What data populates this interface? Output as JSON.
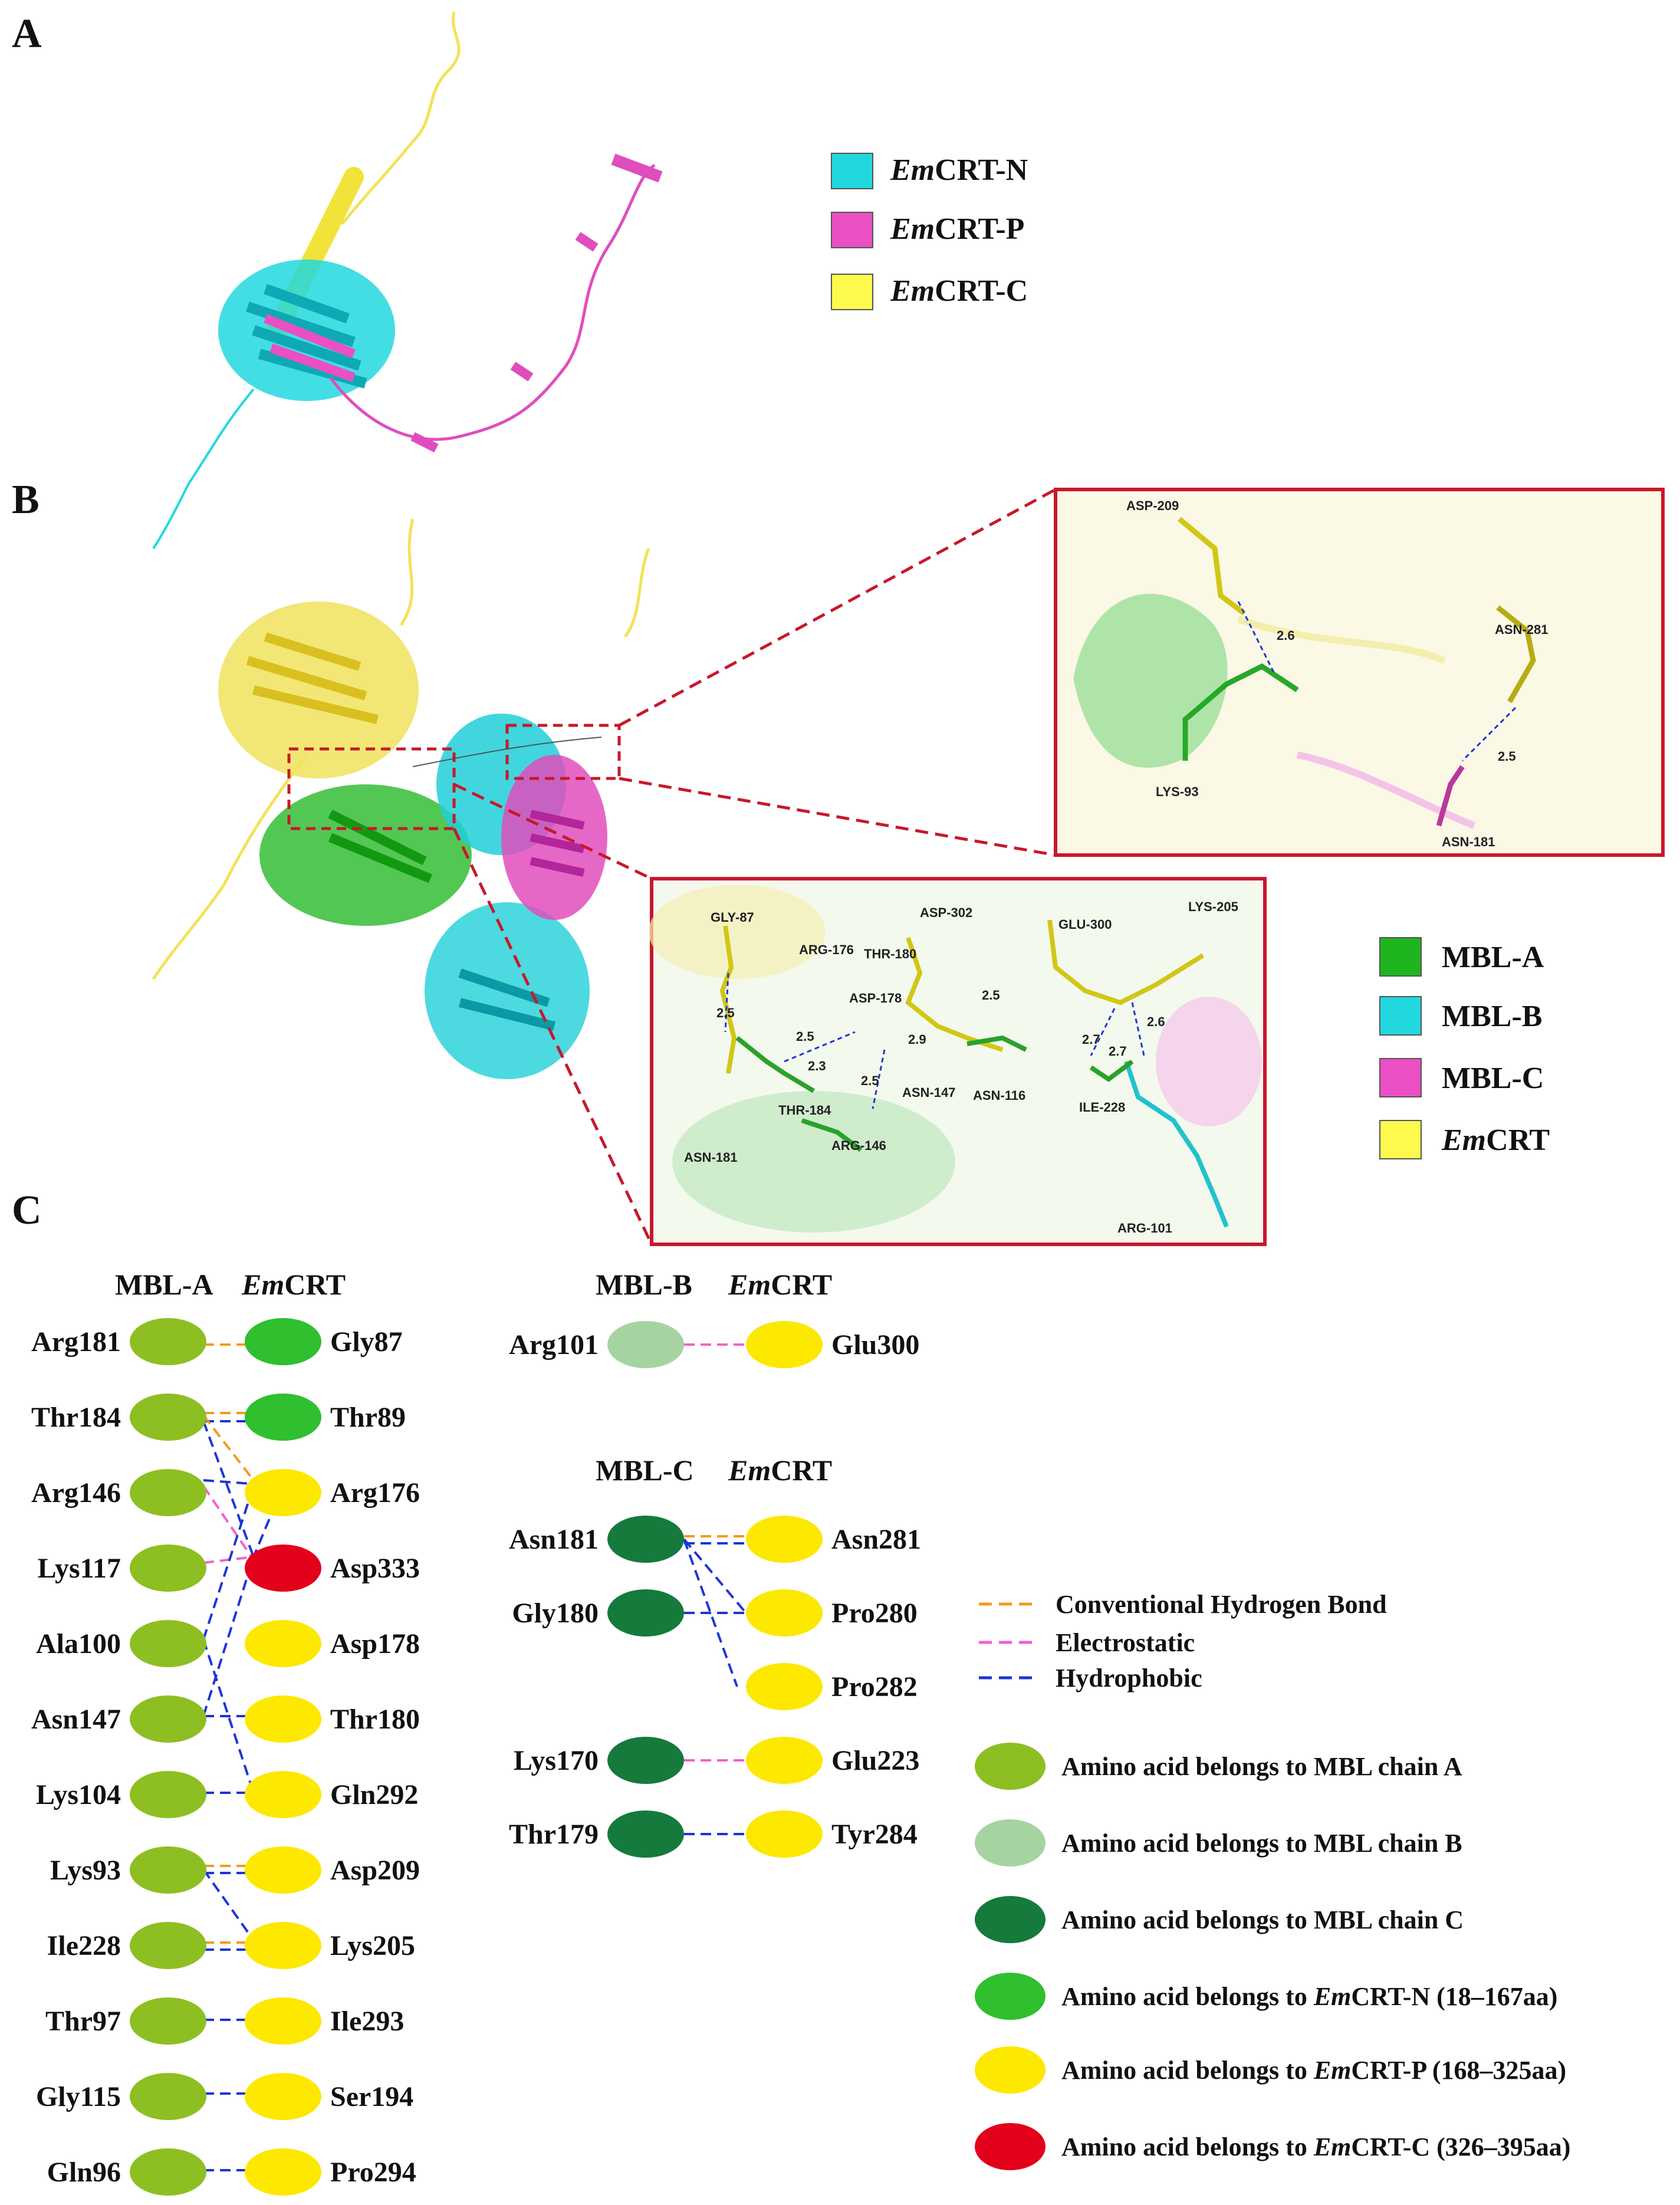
{
  "panels": {
    "a": "A",
    "b": "B",
    "c": "C"
  },
  "legend_a": [
    {
      "em": "Em",
      "rest": "CRT-N",
      "color": "#22d8df"
    },
    {
      "em": "Em",
      "rest": "CRT-P",
      "color": "#ea4fc3"
    },
    {
      "em": "Em",
      "rest": "CRT-C",
      "color": "#fdfa4d"
    }
  ],
  "legend_b": [
    {
      "label": "MBL-A",
      "em": "",
      "color": "#1fb51f"
    },
    {
      "label": "MBL-B",
      "em": "",
      "color": "#22d8df"
    },
    {
      "label": "MBL-C",
      "em": "",
      "color": "#ea4fc3"
    },
    {
      "label": "CRT",
      "em": "Em",
      "color": "#fdfa4d"
    }
  ],
  "inset_top_labels": [
    "ASP-209",
    "2.6",
    "ASN-281",
    "2.5",
    "LYS-93",
    "ASN-181"
  ],
  "inset_bottom_labels": [
    "GLY-87",
    "ASP-302",
    "GLU-300",
    "LYS-205",
    "ARG-176",
    "THR-180",
    "ASP-178",
    "2.5",
    "2.5",
    "2.9",
    "2.5",
    "2.3",
    "2.7",
    "2.6",
    "2.7",
    "2.5",
    "ASN-147",
    "ASN-116",
    "ILE-228",
    "THR-184",
    "ARG-146",
    "ASN-181",
    "ARG-101"
  ],
  "group_a": {
    "hdr_left": "MBL-A",
    "hdr_em": "Em",
    "hdr_right": "CRT",
    "left": [
      "Arg181",
      "Thr184",
      "Arg146",
      "Lys117",
      "Ala100",
      "Asn147",
      "Lys104",
      "Lys93",
      "Ile228",
      "Thr97",
      "Gly115",
      "Gln96"
    ],
    "right": [
      "Gly87",
      "Thr89",
      "Arg176",
      "Asp333",
      "Asp178",
      "Thr180",
      "Gln292",
      "Asp209",
      "Lys205",
      "Ile293",
      "Ser194",
      "Pro294"
    ]
  },
  "group_b": {
    "hdr_left": "MBL-B",
    "hdr_em": "Em",
    "hdr_right": "CRT",
    "left": [
      "Arg101"
    ],
    "right": [
      "Glu300"
    ]
  },
  "group_c": {
    "hdr_left": "MBL-C",
    "hdr_em": "Em",
    "hdr_right": "CRT",
    "left": [
      "Asn181",
      "Gly180",
      "Lys170",
      "Thr179"
    ],
    "right": [
      "Asn281",
      "Pro280",
      "Pro282",
      "Glu223",
      "Tyr284"
    ]
  },
  "bond_legend": [
    {
      "label": "Conventional Hydrogen Bond",
      "color": "#f39a1e"
    },
    {
      "label": "Electrostatic",
      "color": "#f35fd0"
    },
    {
      "label": "Hydrophobic",
      "color": "#1c35d8"
    }
  ],
  "residue_legend": [
    {
      "pre": "Amino acid belongs to MBL chain A",
      "em": "",
      "post": "",
      "color": "#8dbf22"
    },
    {
      "pre": "Amino acid belongs to MBL chain B",
      "em": "",
      "post": "",
      "color": "#a6d4a0"
    },
    {
      "pre": "Amino acid belongs to MBL chain C",
      "em": "",
      "post": "",
      "color": "#157a3c"
    },
    {
      "pre": "Amino acid belongs to ",
      "em": "Em",
      "post": "CRT-N (18–167aa)",
      "color": "#2fbf2f"
    },
    {
      "pre": "Amino acid belongs to ",
      "em": "Em",
      "post": "CRT-P (168–325aa)",
      "color": "#fde800"
    },
    {
      "pre": "Amino acid belongs to ",
      "em": "Em",
      "post": "CRT-C (326–395aa)",
      "color": "#e3001b"
    }
  ],
  "colors": {
    "chainA": "#8dbf22",
    "chainB": "#a6d4a0",
    "chainC": "#157a3c",
    "crtN": "#2fbf2f",
    "crtP": "#fde800",
    "crtC": "#e3001b",
    "hbond": "#f39a1e",
    "electro": "#f35fd0",
    "hydro": "#1c35d8",
    "frame": "#c8182a"
  },
  "right_colors_a": [
    "crtN",
    "crtN",
    "crtP",
    "crtC",
    "crtP",
    "crtP",
    "crtP",
    "crtP",
    "crtP",
    "crtP",
    "crtP",
    "crtP"
  ]
}
